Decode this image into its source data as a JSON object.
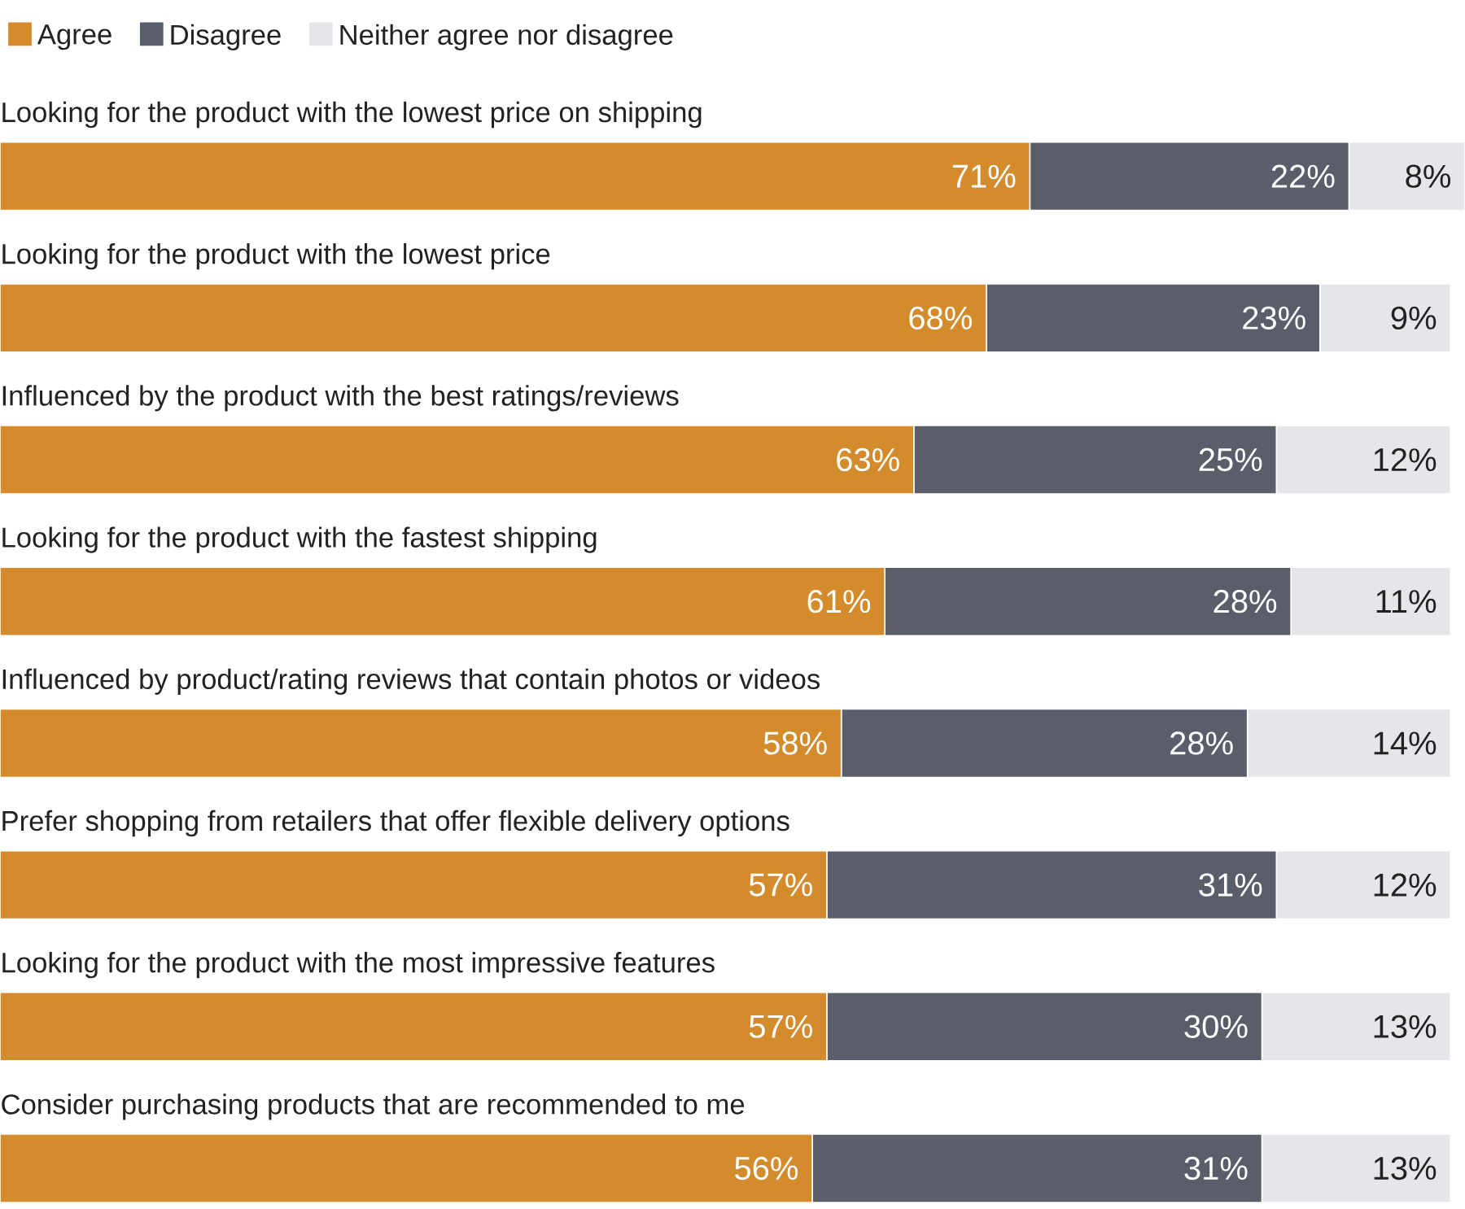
{
  "chart_data": {
    "type": "bar",
    "orientation": "horizontal",
    "stacked": true,
    "legend": "top left",
    "categories": [
      "Looking for the product with the lowest price on shipping",
      "Looking for the product with the lowest price",
      "Influenced by the product with the best ratings/reviews",
      "Looking for the product with the fastest shipping",
      "Influenced by product/rating reviews that contain photos or videos",
      "Prefer shopping from retailers that offer flexible delivery options",
      "Looking for the product with the most impressive features",
      "Consider purchasing products that are recommended to me"
    ],
    "series": [
      {
        "name": "Agree",
        "color": "#d38b2b",
        "values": [
          71,
          68,
          63,
          61,
          58,
          57,
          57,
          56
        ],
        "value_labels": [
          "71%",
          "68%",
          "63%",
          "61%",
          "58%",
          "57%",
          "57%",
          "56%"
        ]
      },
      {
        "name": "Disagree",
        "color": "#5a5e6a",
        "values": [
          22,
          23,
          25,
          28,
          28,
          31,
          30,
          31
        ],
        "value_labels": [
          "22%",
          "23%",
          "25%",
          "28%",
          "28%",
          "31%",
          "30%",
          "31%"
        ]
      },
      {
        "name": "Neither agree nor disagree",
        "color": "#e4e6ea",
        "values": [
          8,
          9,
          12,
          11,
          14,
          12,
          13,
          13
        ],
        "value_labels": [
          "8%",
          "9%",
          "12%",
          "11%",
          "14%",
          "12%",
          "13%",
          "13%"
        ]
      }
    ]
  }
}
